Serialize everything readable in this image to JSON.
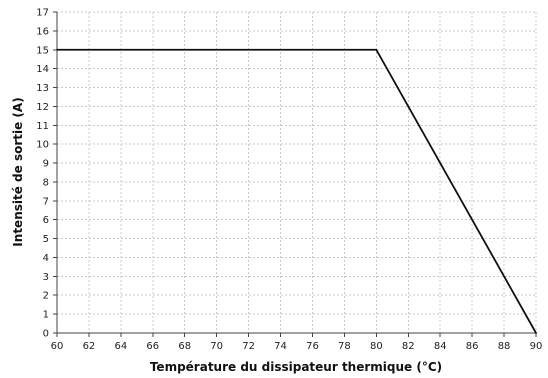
{
  "chart_data": {
    "type": "line",
    "title": "",
    "xlabel": "Température du dissipateur thermique (°C)",
    "ylabel": "Intensité de sortie (A)",
    "xlim": [
      60,
      90
    ],
    "ylim": [
      0,
      17
    ],
    "x_ticks": [
      60,
      62,
      64,
      66,
      68,
      70,
      72,
      74,
      76,
      78,
      80,
      82,
      84,
      86,
      88,
      90
    ],
    "y_ticks": [
      0,
      1,
      2,
      3,
      4,
      5,
      6,
      7,
      8,
      9,
      10,
      11,
      12,
      13,
      14,
      15,
      16,
      17
    ],
    "grid": true,
    "legend": "none",
    "series": [
      {
        "x": [
          60,
          80,
          90
        ],
        "y": [
          15,
          15,
          0
        ],
        "color": "#111111"
      }
    ]
  }
}
